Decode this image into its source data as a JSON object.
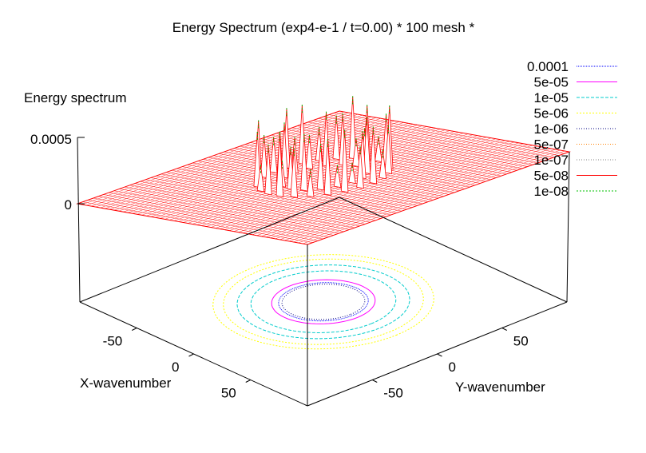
{
  "chart_data": {
    "type": "surface3d",
    "title": "Energy Spectrum (exp4-e-1 / t=0.00) * 100 mesh *",
    "zlabel": "Energy spectrum",
    "xlabel": "X-wavenumber",
    "ylabel": "Y-wavenumber",
    "xlim": [
      -100,
      100
    ],
    "ylim": [
      -100,
      100
    ],
    "zlim": [
      0,
      0.0005
    ],
    "z_ticks": [
      "0.0005",
      "0"
    ],
    "x_ticks": [
      {
        "value": -50,
        "label": "-50"
      },
      {
        "value": 0,
        "label": "0"
      },
      {
        "value": 50,
        "label": "50"
      }
    ],
    "y_ticks": [
      {
        "value": -50,
        "label": "-50"
      },
      {
        "value": 0,
        "label": "0"
      },
      {
        "value": 50,
        "label": "50"
      }
    ],
    "surface": {
      "color": "#ff0000",
      "description_rings": [
        {
          "radius": 25,
          "peaks": 16
        },
        {
          "radius": 38,
          "peaks": 24
        }
      ]
    },
    "contour_levels": [
      {
        "label": "0.0001",
        "value": 0.0001,
        "color": "#0000ff",
        "dash": "1,1"
      },
      {
        "label": "5e-05",
        "value": 5e-05,
        "color": "#ff00ff",
        "dash": ""
      },
      {
        "label": "1e-05",
        "value": 1e-05,
        "color": "#00cccc",
        "dash": "4,2"
      },
      {
        "label": "5e-06",
        "value": 5e-06,
        "color": "#ffff00",
        "dash": "2,2"
      },
      {
        "label": "1e-06",
        "value": 1e-06,
        "color": "#000080",
        "dash": "1,2"
      },
      {
        "label": "5e-07",
        "value": 5e-07,
        "color": "#ff8000",
        "dash": "1,2"
      },
      {
        "label": "1e-07",
        "value": 1e-07,
        "color": "#808080",
        "dash": "1,2"
      },
      {
        "label": "5e-08",
        "value": 5e-08,
        "color": "#ff0000",
        "dash": ""
      },
      {
        "label": "1e-08",
        "value": 1e-08,
        "color": "#00c000",
        "dash": "2,2"
      }
    ],
    "contour_radii": [
      {
        "level": "0.0001",
        "radius": 26
      },
      {
        "level": "5e-05",
        "radius": 30
      },
      {
        "level": "1e-05",
        "radius": 42
      },
      {
        "level": "1e-05",
        "radius": 50
      },
      {
        "level": "5e-06",
        "radius": 58
      },
      {
        "level": "5e-06",
        "radius": 64
      },
      {
        "level": "1e-06",
        "radius": 24
      }
    ]
  }
}
